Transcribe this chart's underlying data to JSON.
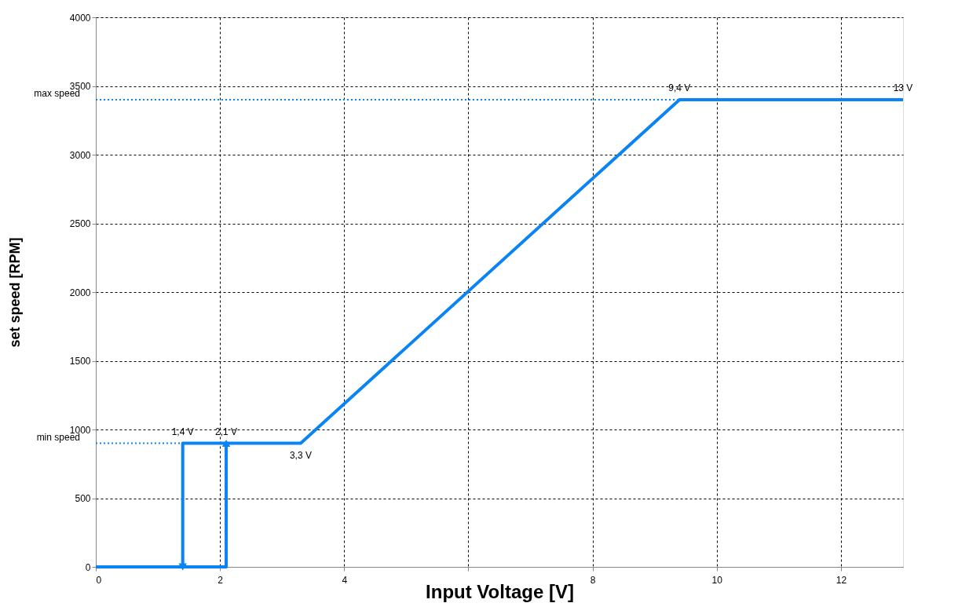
{
  "chart_data": {
    "type": "line",
    "xlabel": "Input Voltage [V]",
    "ylabel": "set speed [RPM]",
    "xlim": [
      0,
      13
    ],
    "ylim": [
      0,
      4000
    ],
    "xticks": [
      0,
      2,
      4,
      {
        "value": 6,
        "label": null
      },
      8,
      10,
      12
    ],
    "yticks": [
      0,
      500,
      1000,
      1500,
      2000,
      2500,
      3000,
      3500,
      4000
    ],
    "series": [
      {
        "color": "#0a84f5",
        "x": [
          0,
          2.1,
          2.1,
          3.3,
          9.4,
          13
        ],
        "values": [
          0,
          0,
          900,
          900,
          3400,
          3400
        ]
      },
      {
        "color": "#0a84f5",
        "x": [
          2.1,
          1.4,
          1.4
        ],
        "values": [
          900,
          900,
          0
        ]
      }
    ],
    "ref_lines": [
      {
        "axis": "y",
        "value": 3400,
        "label": "max speed",
        "color": "#0a84f5",
        "line_style": "dotted"
      },
      {
        "axis": "y",
        "value": 900,
        "label": "min speed",
        "color": "#0a84f5",
        "line_style": "dotted"
      }
    ],
    "annotations": [
      {
        "text": "1,4 V",
        "x": 1.4,
        "y": 900
      },
      {
        "text": "2,1 V",
        "x": 2.1,
        "y": 900
      },
      {
        "text": "3,3 V",
        "x": 3.3,
        "y": 900
      },
      {
        "text": "9,4 V",
        "x": 9.4,
        "y": 3400
      },
      {
        "text": "13 V",
        "x": 13,
        "y": 3400
      }
    ],
    "grid": true,
    "marker": "none",
    "line_style": "solid"
  }
}
